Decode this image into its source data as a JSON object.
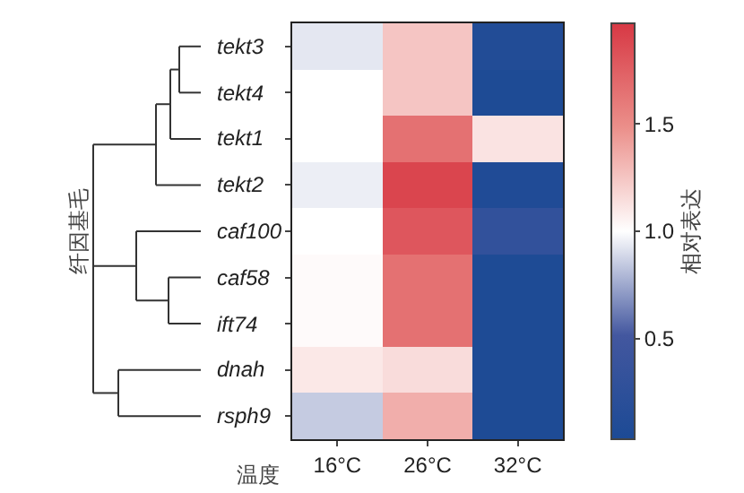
{
  "chart_data": {
    "type": "heatmap",
    "xlabel": "温度",
    "annotations": [
      "纤因基毛"
    ],
    "clabel": "相对表达",
    "categories": [
      "16°C",
      "26°C",
      "32°C"
    ],
    "y_categories": [
      "tekt3",
      "tekt4",
      "tekt1",
      "tekt2",
      "caf100",
      "caf58",
      "ift74",
      "dnah",
      "rsph9"
    ],
    "cells": [
      [
        0.93,
        1.25,
        0.1
      ],
      [
        1.0,
        1.25,
        0.05
      ],
      [
        1.0,
        1.65,
        1.12
      ],
      [
        0.95,
        1.9,
        0.08
      ],
      [
        1.0,
        1.8,
        0.3
      ],
      [
        1.02,
        1.65,
        0.05
      ],
      [
        1.02,
        1.65,
        0.05
      ],
      [
        1.1,
        1.15,
        0.05
      ],
      [
        0.85,
        1.35,
        0.05
      ]
    ],
    "clim": [
      0.03,
      1.97
    ],
    "cticks": [
      0.5,
      {
        "value": 1,
        "label": "1.0"
      },
      1.5
    ]
  }
}
